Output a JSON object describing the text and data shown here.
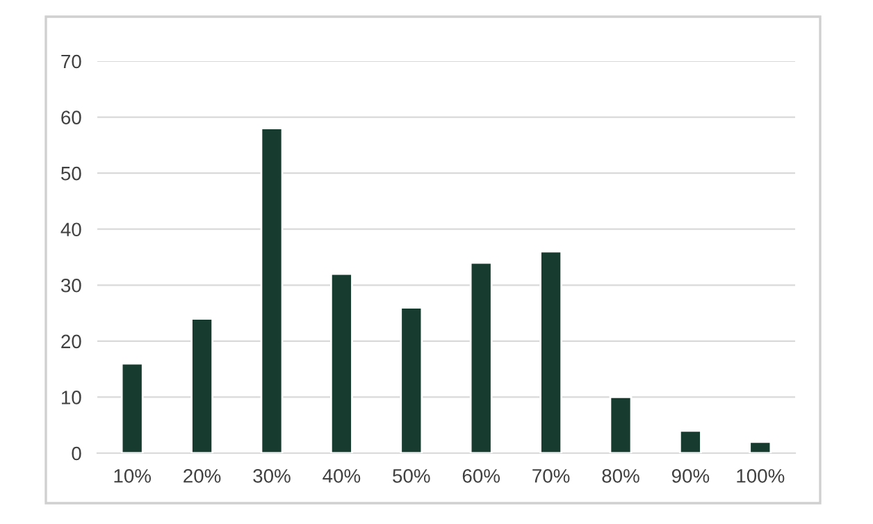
{
  "chart_data": {
    "type": "bar",
    "categories": [
      "10%",
      "20%",
      "30%",
      "40%",
      "50%",
      "60%",
      "70%",
      "80%",
      "90%",
      "100%"
    ],
    "values": [
      16,
      24,
      58,
      32,
      26,
      34,
      36,
      10,
      4,
      2
    ],
    "color": "#173b2f",
    "ylim": [
      0,
      70
    ],
    "yticks": [
      0,
      10,
      20,
      30,
      40,
      50,
      60,
      70
    ],
    "grid": "y"
  }
}
